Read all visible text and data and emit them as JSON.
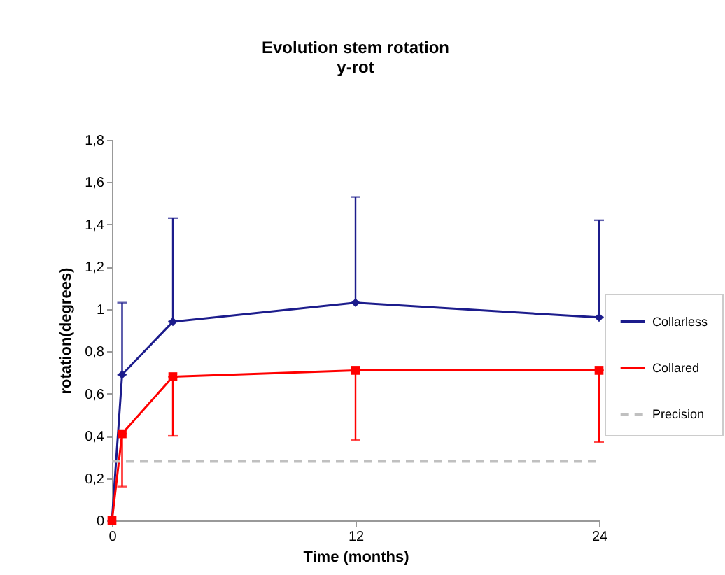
{
  "chart_data": {
    "type": "line",
    "title": "Evolution stem rotation",
    "subtitle": "y-rot",
    "xlabel": "Time (months)",
    "ylabel": "rotation(degrees)",
    "x": [
      0,
      0.5,
      3,
      12,
      24
    ],
    "series": [
      {
        "name": "Collarless",
        "color": "#1c1c8c",
        "marker": "diamond",
        "line_style": "solid",
        "values": [
          0,
          0.69,
          0.94,
          1.03,
          0.96
        ],
        "errors": [
          null,
          [
            0.69,
            1.03
          ],
          [
            0.94,
            1.43
          ],
          [
            1.03,
            1.53
          ],
          [
            0.96,
            1.42
          ]
        ]
      },
      {
        "name": "Collared",
        "color": "#ff0000",
        "marker": "square",
        "line_style": "solid",
        "values": [
          0,
          0.41,
          0.68,
          0.71,
          0.71
        ],
        "errors": [
          null,
          [
            0.16,
            0.41
          ],
          [
            0.4,
            0.68
          ],
          [
            0.38,
            0.71
          ],
          [
            0.37,
            0.71
          ]
        ]
      },
      {
        "name": "Precision",
        "color": "#c0c0c0",
        "marker": "none",
        "line_style": "dashed",
        "x": [
          0,
          24
        ],
        "values": [
          0.28,
          0.28
        ]
      }
    ],
    "xlim": [
      0,
      24
    ],
    "xticks": [
      0,
      12,
      24
    ],
    "ylim": [
      0,
      1.8
    ],
    "yticks": [
      0,
      {
        "value": 0.2,
        "label": "0,2"
      },
      {
        "value": 0.4,
        "label": "0,4"
      },
      {
        "value": 0.6,
        "label": "0,6"
      },
      {
        "value": 0.8,
        "label": "0,8"
      },
      1,
      {
        "value": 1.2,
        "label": "1,2"
      },
      {
        "value": 1.4,
        "label": "1,4"
      },
      {
        "value": 1.6,
        "label": "1,6"
      },
      {
        "value": 1.8,
        "label": "1,8"
      }
    ],
    "grid": false,
    "legend": "right"
  }
}
